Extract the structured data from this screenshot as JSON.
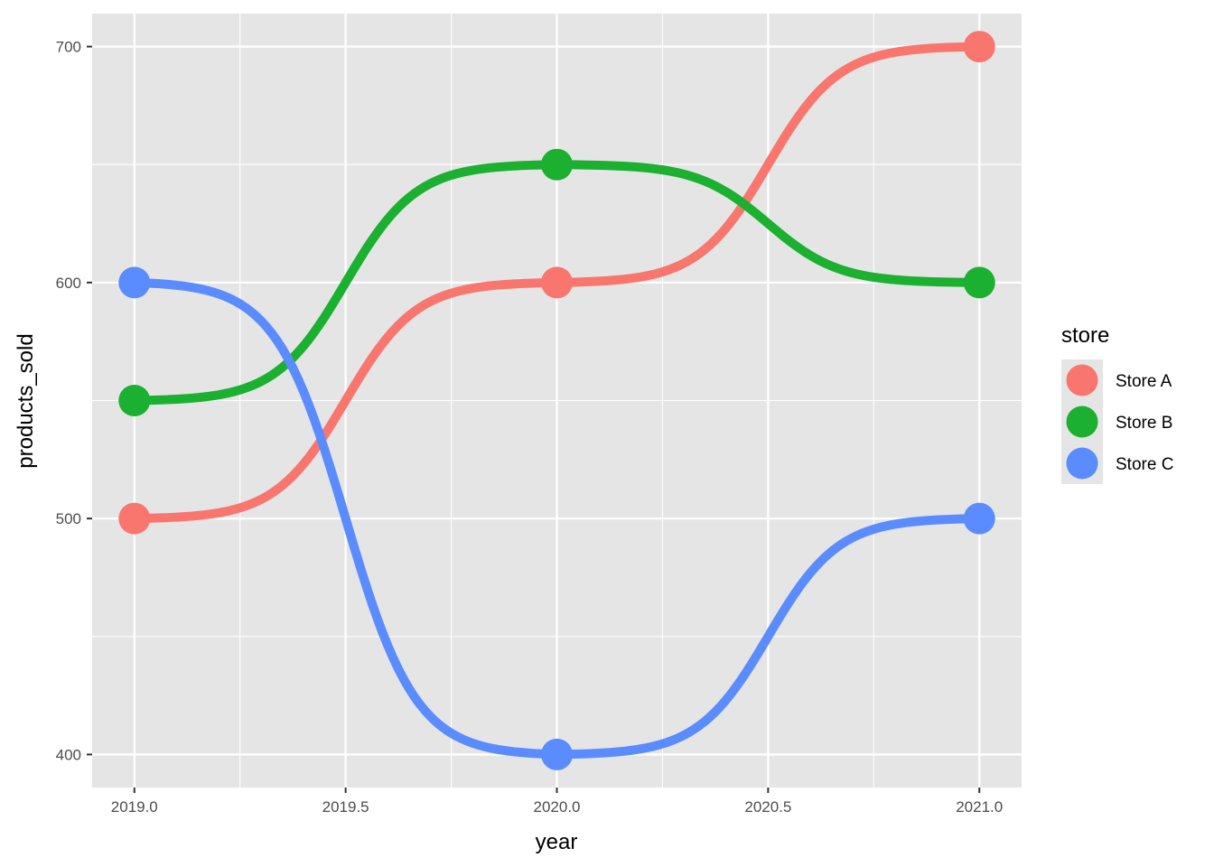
{
  "chart_data": {
    "type": "line",
    "xlabel": "year",
    "ylabel": "products_sold",
    "x": [
      2019,
      2020,
      2021
    ],
    "xlim": [
      2018.9,
      2021.1
    ],
    "ylim": [
      386,
      714
    ],
    "x_ticks": [
      2019.0,
      2019.5,
      2020.0,
      2020.5,
      2021.0
    ],
    "x_tick_labels": [
      "2019.0",
      "2019.5",
      "2020.0",
      "2020.5",
      "2021.0"
    ],
    "y_ticks": [
      400,
      500,
      600,
      700
    ],
    "y_tick_labels": [
      "400",
      "500",
      "600",
      "700"
    ],
    "grid": true,
    "curve": "sigmoid",
    "legend": {
      "title": "store",
      "placement": "right"
    },
    "series": [
      {
        "name": "Store A",
        "color": "#F8766D",
        "values": [
          500,
          600,
          700
        ]
      },
      {
        "name": "Store B",
        "color": "#1BB02F",
        "values": [
          550,
          650,
          600
        ]
      },
      {
        "name": "Store C",
        "color": "#5A8CFF",
        "values": [
          600,
          400,
          500
        ]
      }
    ],
    "panel_background": "#E5E5E5",
    "grid_color": "#FFFFFF"
  }
}
